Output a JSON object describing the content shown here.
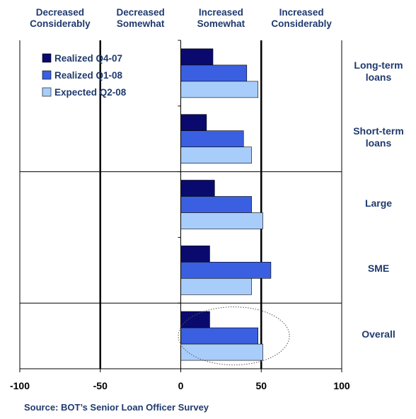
{
  "chart_data": {
    "type": "bar",
    "orientation": "horizontal",
    "title": "",
    "xlabel": "",
    "ylabel": "",
    "xlim": [
      -100,
      100
    ],
    "x_ticks": [
      -100,
      -50,
      0,
      50,
      100
    ],
    "column_headers": [
      {
        "line1": "Decreased",
        "line2": "Considerably"
      },
      {
        "line1": "Decreased",
        "line2": "Somewhat"
      },
      {
        "line1": "Increased",
        "line2": "Somewhat"
      },
      {
        "line1": "Increased",
        "line2": "Considerably"
      }
    ],
    "categories": [
      {
        "line1": "Long-term",
        "line2": "loans"
      },
      {
        "line1": "Short-term",
        "line2": "loans"
      },
      {
        "line1": "Large",
        "line2": ""
      },
      {
        "line1": "SME",
        "line2": ""
      },
      {
        "line1": "Overall",
        "line2": ""
      }
    ],
    "series": [
      {
        "name": "Realized Q4-07",
        "color": "#0a0a6e",
        "values": [
          20,
          16,
          21,
          18,
          18
        ]
      },
      {
        "name": "Realized Q1-08",
        "color": "#3a5fe0",
        "values": [
          41,
          39,
          44,
          56,
          48
        ]
      },
      {
        "name": "Expected Q2-08",
        "color": "#a9cdfa",
        "values": [
          48,
          44,
          51,
          44,
          51
        ]
      }
    ],
    "legend_position": "top-left",
    "highlight": "Overall",
    "source": "Source: BOT’s Senior Loan Officer Survey"
  }
}
